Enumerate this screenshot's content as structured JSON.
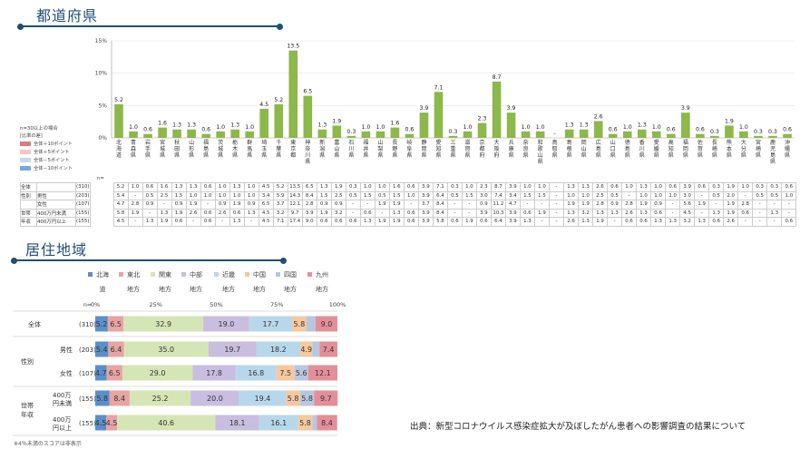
{
  "section1": {
    "title": "都道府県"
  },
  "section2": {
    "title": "居住地域"
  },
  "n_note": "n=30以上の場合",
  "n_label": "n=",
  "ratio_legend": {
    "title": "[比率の差]",
    "items": [
      {
        "label": "全体＋10ポイント",
        "color": "#e07a7a"
      },
      {
        "label": "全体＋5ポイント",
        "color": "#f5c6c6"
      },
      {
        "label": "全体－5ポイント",
        "color": "#c6d9f0"
      },
      {
        "label": "全体－10ポイント",
        "color": "#7da7d9"
      }
    ]
  },
  "source": "出典：新型コロナウイルス感染症拡大が及ぼしたがん患者への影響調査の結果について",
  "footnote": "※4％未満のスコアは非表示",
  "table": {
    "rows": [
      {
        "group": "全体",
        "sub": "",
        "n": "(310)",
        "values": [
          "5.2",
          "1.0",
          "0.6",
          "1.6",
          "1.3",
          "1.3",
          "0.6",
          "1.0",
          "1.3",
          "1.0",
          "4.5",
          "5.2",
          "13.5",
          "6.5",
          "1.3",
          "1.9",
          "0.3",
          "1.0",
          "1.0",
          "1.6",
          "0.6",
          "3.9",
          "7.1",
          "0.3",
          "1.0",
          "2.3",
          "8.7",
          "3.9",
          "1.0",
          "1.0",
          "-",
          "1.3",
          "1.3",
          "2.6",
          "0.6",
          "1.0",
          "1.3",
          "1.0",
          "0.6",
          "3.9",
          "0.6",
          "0.3",
          "1.9",
          "1.0",
          "0.3",
          "0.3",
          "0.6"
        ]
      },
      {
        "group": "性別",
        "sub": "男性",
        "n": "(203)",
        "values": [
          "5.4",
          "-",
          "0.5",
          "2.5",
          "1.5",
          "1.0",
          "1.0",
          "1.0",
          "1.0",
          "1.0",
          "3.4",
          "5.9",
          "14.3",
          "8.4",
          "1.5",
          "2.5",
          "0.5",
          "1.5",
          "0.5",
          "1.5",
          "1.0",
          "3.9",
          "6.4",
          "0.5",
          "1.5",
          "3.0",
          "7.4",
          "3.4",
          "1.5",
          "1.5",
          "-",
          "1.0",
          "1.0",
          "2.5",
          "0.5",
          "-",
          "1.0",
          "1.0",
          "1.0",
          "3.0",
          "-",
          "0.5",
          "2.0",
          "-",
          "0.5",
          "0.5",
          "1.0"
        ]
      },
      {
        "group": "",
        "sub": "女性",
        "n": "(107)",
        "values": [
          "4.7",
          "2.8",
          "0.9",
          "-",
          "0.9",
          "1.9",
          "-",
          "0.9",
          "1.9",
          "0.9",
          "6.5",
          "3.7",
          "12.1",
          "2.8",
          "0.9",
          "0.9",
          "-",
          "-",
          "1.9",
          "1.9",
          "-",
          "3.7",
          "8.4",
          "-",
          "-",
          "0.9",
          "11.2",
          "4.7",
          "-",
          "-",
          "-",
          "1.9",
          "1.9",
          "2.8",
          "0.9",
          "2.8",
          "1.9",
          "0.9",
          "-",
          "5.6",
          "1.9",
          "-",
          "1.9",
          "2.8",
          "-",
          "-",
          "-"
        ]
      },
      {
        "group": "世帯",
        "sub": "400万円未満",
        "n": "(155)",
        "values": [
          "5.8",
          "1.9",
          "-",
          "1.3",
          "1.9",
          "2.6",
          "0.6",
          "2.6",
          "0.6",
          "1.3",
          "4.5",
          "3.2",
          "9.7",
          "3.9",
          "1.9",
          "3.2",
          "-",
          "0.6",
          "-",
          "1.3",
          "0.6",
          "3.9",
          "8.4",
          "-",
          "-",
          "3.9",
          "10.3",
          "3.9",
          "0.6",
          "1.9",
          "-",
          "1.3",
          "3.2",
          "1.3",
          "1.3",
          "2.6",
          "1.3",
          "0.6",
          "-",
          "4.5",
          "-",
          "1.3",
          "1.9",
          "0.6",
          "-",
          "1.3",
          "-"
        ]
      },
      {
        "group": "年収",
        "sub": "400万円以上",
        "n": "(155)",
        "values": [
          "4.5",
          "-",
          "1.3",
          "1.9",
          "0.6",
          "-",
          "0.6",
          "-",
          "1.3",
          "-",
          "4.5",
          "7.1",
          "17.4",
          "9.0",
          "0.6",
          "0.6",
          "0.6",
          "1.3",
          "1.9",
          "1.9",
          "0.6",
          "3.9",
          "5.8",
          "0.6",
          "1.9",
          "0.6",
          "6.4",
          "3.9",
          "1.3",
          "-",
          "-",
          "2.6",
          "1.3",
          "1.9",
          "-",
          "0.6",
          "0.6",
          "1.3",
          "1.3",
          "3.2",
          "1.3",
          "0.6",
          "2.6",
          "-",
          "-",
          "-",
          "0.6"
        ]
      }
    ]
  },
  "chart_data": [
    {
      "type": "bar",
      "title": "都道府県",
      "ylim": [
        0,
        15
      ],
      "yticks": [
        "0%",
        "5%",
        "10%",
        "15%"
      ],
      "categories": [
        "北海道",
        "青森県",
        "岩手県",
        "宮城県",
        "秋田県",
        "山形県",
        "福島県",
        "茨城県",
        "栃木県",
        "群馬県",
        "埼玉県",
        "千葉県",
        "東京都",
        "神奈川県",
        "新潟県",
        "富山県",
        "石川県",
        "福井県",
        "山梨県",
        "長野県",
        "岐阜県",
        "静岡県",
        "愛知県",
        "三重県",
        "滋賀県",
        "京都府",
        "大阪府",
        "兵庫県",
        "奈良県",
        "和歌山県",
        "鳥取県",
        "島根県",
        "岡山県",
        "広島県",
        "山口県",
        "徳島県",
        "香川県",
        "愛媛県",
        "高知県",
        "福岡県",
        "佐賀県",
        "長崎県",
        "熊本県",
        "大分県",
        "宮崎県",
        "鹿児島県",
        "沖縄県"
      ],
      "value_labels": [
        "5.2",
        "1.0",
        "0.6",
        "1.6",
        "1.3",
        "1.3",
        "0.6",
        "1.0",
        "1.3",
        "1.0",
        "4.5",
        "5.2",
        "13.5",
        "6.5",
        "1.3",
        "1.9",
        "0.3",
        "1.0",
        "1.0",
        "1.6",
        "0.6",
        "3.9",
        "7.1",
        "0.3",
        "1.0",
        "2.3",
        "8.7",
        "3.9",
        "1.0",
        "1.0",
        "-",
        "1.3",
        "1.3",
        "2.6",
        "0.6",
        "1.0",
        "1.3",
        "1.0",
        "0.6",
        "3.9",
        "0.6",
        "0.3",
        "1.9",
        "1.0",
        "0.3",
        "0.3",
        "0.6"
      ],
      "series": [
        {
          "values": [
            5.2,
            1.0,
            0.6,
            1.6,
            1.3,
            1.3,
            0.6,
            1.0,
            1.3,
            1.0,
            4.5,
            5.2,
            13.5,
            6.5,
            1.3,
            1.9,
            0.3,
            1.0,
            1.0,
            1.6,
            0.6,
            3.9,
            7.1,
            0.3,
            1.0,
            2.3,
            8.7,
            3.9,
            1.0,
            1.0,
            0,
            1.3,
            1.3,
            2.6,
            0.6,
            1.0,
            1.3,
            1.0,
            0.6,
            3.9,
            0.6,
            0.3,
            1.9,
            1.0,
            0.3,
            0.3,
            0.6
          ],
          "color": "#8db84a"
        }
      ]
    },
    {
      "type": "bar",
      "stacked": true,
      "orientation": "horizontal",
      "title": "居住地域",
      "xlim": [
        0,
        100
      ],
      "xticks": [
        "0%",
        "25%",
        "50%",
        "75%",
        "100%"
      ],
      "n_header": "n=",
      "legend": [
        {
          "name": "北海道",
          "color": "#5b8fc9"
        },
        {
          "name": "東北地方",
          "color": "#e8a3a3"
        },
        {
          "name": "関東地方",
          "color": "#d6e5b5"
        },
        {
          "name": "中部地方",
          "color": "#c9bedf"
        },
        {
          "name": "近畿地方",
          "color": "#b8d7ea"
        },
        {
          "name": "中国地方",
          "color": "#f6c89f"
        },
        {
          "name": "四国地方",
          "color": "#b9c7de"
        },
        {
          "name": "九州地方",
          "color": "#e38f9a"
        }
      ],
      "rows": [
        {
          "group": "全体",
          "label": "",
          "n": "(310)",
          "values": [
            5.2,
            6.5,
            32.9,
            19.0,
            17.7,
            5.8,
            3.9,
            9.0
          ],
          "labels": [
            "5.2",
            "6.5",
            "32.9",
            "19.0",
            "17.7",
            "5.8",
            "",
            "9.0"
          ]
        },
        {
          "group": "性別",
          "label": "男性",
          "n": "(203)",
          "values": [
            5.4,
            6.4,
            35.0,
            19.7,
            18.2,
            4.9,
            3.0,
            7.4
          ],
          "labels": [
            "5.4",
            "6.4",
            "35.0",
            "19.7",
            "18.2",
            "4.9",
            "",
            "7.4"
          ]
        },
        {
          "group": "",
          "label": "女性",
          "n": "(107)",
          "values": [
            4.7,
            6.5,
            29.0,
            17.8,
            16.8,
            7.5,
            5.6,
            12.1
          ],
          "labels": [
            "4.7",
            "6.5",
            "29.0",
            "17.8",
            "16.8",
            "7.5",
            "5.6",
            "12.1"
          ]
        },
        {
          "group": "世帯年収",
          "label": "400万円未満",
          "n": "(155)",
          "values": [
            5.8,
            8.4,
            25.2,
            20.0,
            19.4,
            5.8,
            5.8,
            9.7
          ],
          "labels": [
            "5.8",
            "8.4",
            "25.2",
            "20.0",
            "19.4",
            "5.8",
            "5.8",
            "9.7"
          ]
        },
        {
          "group": "",
          "label": "400万円以上",
          "n": "(155)",
          "values": [
            4.5,
            4.5,
            40.6,
            18.1,
            16.1,
            5.8,
            1.9,
            8.4
          ],
          "labels": [
            "4.5",
            "4.5",
            "40.6",
            "18.1",
            "16.1",
            "5.8",
            "",
            "8.4"
          ]
        }
      ]
    }
  ]
}
